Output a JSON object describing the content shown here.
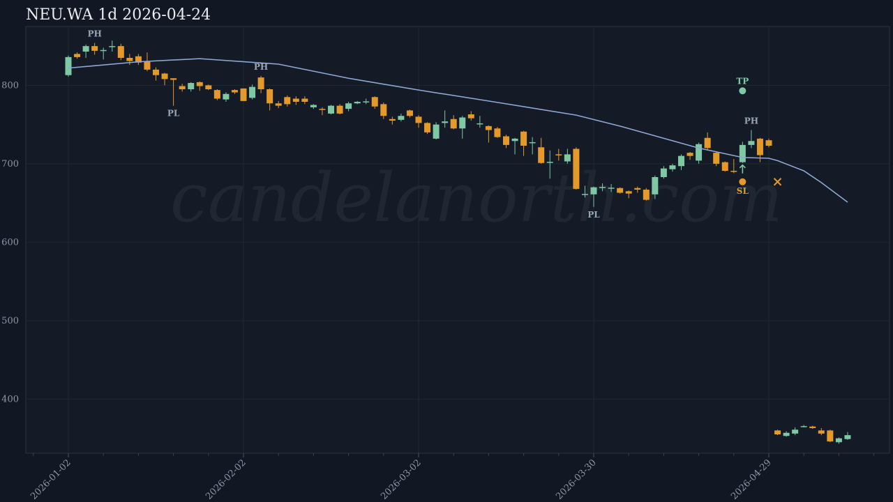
{
  "chart_data": {
    "type": "candlestick",
    "title": "NEU.WA 1d 2026-04-24",
    "watermark": "candelanorth.com",
    "categories": [
      "2026-01-02",
      null,
      null,
      null,
      null,
      null,
      null,
      null,
      null,
      null,
      null,
      null,
      null,
      null,
      null,
      null,
      null,
      null,
      null,
      null,
      "2026-02-02",
      null,
      null,
      null,
      null,
      null,
      null,
      null,
      null,
      null,
      null,
      null,
      null,
      null,
      null,
      null,
      null,
      null,
      null,
      null,
      "2026-03-02",
      null,
      null,
      null,
      null,
      null,
      null,
      null,
      null,
      null,
      null,
      null,
      null,
      null,
      null,
      null,
      null,
      null,
      null,
      null,
      "2026-03-30",
      null,
      null,
      null,
      null,
      null,
      null,
      null,
      null,
      null,
      null,
      null,
      null,
      null,
      null,
      null,
      null,
      null,
      null,
      null,
      "2026-04-29",
      null,
      null,
      null,
      null,
      null,
      null,
      null,
      null,
      null
    ],
    "open": [
      813,
      840,
      843,
      850,
      844,
      849,
      850,
      835,
      837,
      830,
      820,
      815,
      809,
      799,
      795,
      804,
      800,
      794,
      782,
      794,
      796,
      784,
      810,
      795,
      777,
      785,
      783,
      783,
      772,
      770,
      764,
      774,
      770,
      777,
      779,
      785,
      776,
      757,
      756,
      768,
      760,
      752,
      732,
      752,
      757,
      745,
      763,
      751,
      748,
      745,
      735,
      729,
      741,
      727,
      721,
      702,
      712,
      703,
      719,
      661,
      661,
      670,
      669,
      669,
      665,
      669,
      667,
      661,
      683,
      693,
      697,
      714,
      704,
      733,
      714,
      702,
      691,
      702,
      724,
      732,
      730,
      360,
      353,
      356,
      365,
      365,
      360,
      360,
      345,
      349
    ],
    "high": [
      838,
      842,
      852,
      854,
      848,
      857,
      853,
      840,
      840,
      842,
      823,
      816,
      809,
      802,
      804,
      805,
      801,
      795,
      791,
      795,
      796,
      801,
      812,
      796,
      780,
      787,
      786,
      786,
      776,
      772,
      775,
      776,
      779,
      780,
      783,
      786,
      778,
      760,
      764,
      769,
      762,
      753,
      753,
      768,
      762,
      761,
      767,
      761,
      749,
      747,
      737,
      733,
      742,
      734,
      733,
      717,
      719,
      719,
      721,
      672,
      671,
      675,
      674,
      670,
      666,
      671,
      669,
      685,
      697,
      700,
      712,
      715,
      727,
      740,
      716,
      703,
      706,
      728,
      743,
      733,
      732,
      361,
      359,
      364,
      367,
      366,
      363,
      361,
      351,
      358
    ],
    "low": [
      811,
      834,
      835,
      839,
      833,
      843,
      832,
      826,
      826,
      818,
      806,
      800,
      774,
      792,
      792,
      793,
      794,
      781,
      779,
      789,
      780,
      782,
      790,
      768,
      771,
      773,
      775,
      776,
      770,
      762,
      763,
      763,
      767,
      776,
      776,
      770,
      757,
      750,
      754,
      759,
      746,
      738,
      731,
      746,
      744,
      732,
      755,
      746,
      727,
      733,
      720,
      712,
      710,
      712,
      700,
      681,
      704,
      700,
      667,
      657,
      645,
      665,
      664,
      662,
      656,
      663,
      653,
      655,
      681,
      690,
      692,
      705,
      700,
      718,
      697,
      690,
      688,
      701,
      720,
      702,
      721,
      354,
      352,
      354,
      364,
      362,
      354,
      345,
      343,
      348
    ],
    "close": [
      836,
      836,
      850,
      844,
      845,
      850,
      835,
      831,
      829,
      820,
      813,
      808,
      807,
      795,
      803,
      799,
      795,
      783,
      789,
      791,
      780,
      798,
      795,
      777,
      774,
      776,
      779,
      779,
      775,
      769,
      774,
      764,
      777,
      779,
      779.5,
      773,
      761,
      755,
      761,
      761,
      752,
      740,
      750,
      754,
      745,
      759,
      758,
      751.5,
      743,
      734,
      724,
      732,
      723,
      727.5,
      701,
      702.5,
      711,
      712,
      668,
      661.5,
      670,
      670.5,
      669.5,
      663,
      662,
      667,
      654,
      683,
      694,
      698,
      710,
      710,
      725,
      720,
      700,
      691,
      690,
      724,
      729,
      711,
      723,
      355,
      357,
      361,
      365.5,
      363,
      356,
      346,
      350,
      354
    ],
    "up_color": "#7ec8a4",
    "down_color": "#e39a2b",
    "ma": {
      "color": "#8fa8d8",
      "x": [
        0,
        8,
        15,
        24,
        32,
        40,
        48,
        58,
        63,
        72,
        77,
        80,
        81,
        84,
        86,
        89
      ],
      "values": [
        822,
        830,
        834,
        827,
        809,
        794,
        780,
        762,
        748,
        720,
        708,
        707,
        704,
        691,
        676,
        651
      ]
    },
    "pivots": [
      {
        "label": "PH",
        "index": 3
      },
      {
        "label": "PL",
        "index": 12
      },
      {
        "label": "PH",
        "index": 22
      },
      {
        "label": "PL",
        "index": 60
      },
      {
        "label": "PH",
        "index": 78
      }
    ],
    "take_profit": {
      "label": "TP",
      "index": 77,
      "value": 793,
      "color": "#7ec8a4"
    },
    "stop_loss": {
      "label": "SL",
      "index": 77,
      "value": 677,
      "color": "#e39a2b"
    },
    "exit": {
      "index": 81,
      "value": 677,
      "color": "#e39a2b"
    },
    "ylim": [
      331,
      875
    ],
    "yticks": [
      400,
      500,
      600,
      700,
      800
    ],
    "grid": true
  }
}
